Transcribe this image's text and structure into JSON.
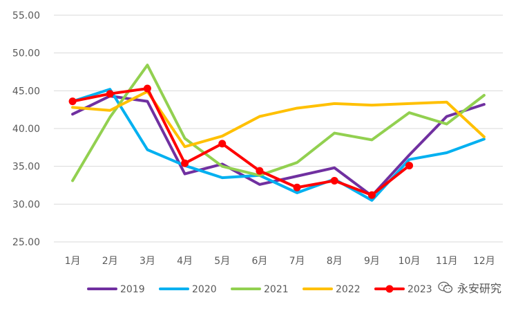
{
  "chart_data": {
    "type": "line",
    "title": "",
    "xlabel": "",
    "ylabel": "",
    "categories": [
      "1月",
      "2月",
      "3月",
      "4月",
      "5月",
      "6月",
      "7月",
      "8月",
      "9月",
      "10月",
      "11月",
      "12月"
    ],
    "ylim": [
      25,
      55
    ],
    "yticks": [
      "25.00",
      "30.00",
      "35.00",
      "40.00",
      "45.00",
      "50.00",
      "55.00"
    ],
    "grid": true,
    "legend_position": "bottom",
    "series": [
      {
        "name": "2019",
        "color": "#7030A0",
        "markers": false,
        "values": [
          41.9,
          44.3,
          43.6,
          34.0,
          35.3,
          32.6,
          33.7,
          34.8,
          31.1,
          36.5,
          41.6,
          43.2
        ]
      },
      {
        "name": "2020",
        "color": "#00B0F0",
        "markers": false,
        "values": [
          43.6,
          45.2,
          37.2,
          35.1,
          33.5,
          33.8,
          31.5,
          33.3,
          30.5,
          35.9,
          36.8,
          38.6
        ]
      },
      {
        "name": "2021",
        "color": "#92D050",
        "markers": false,
        "values": [
          33.1,
          41.5,
          48.4,
          38.7,
          35.0,
          33.8,
          35.5,
          39.4,
          38.5,
          42.1,
          40.6,
          44.4
        ]
      },
      {
        "name": "2022",
        "color": "#FFC000",
        "markers": false,
        "values": [
          42.8,
          42.4,
          44.9,
          37.6,
          39.0,
          41.6,
          42.7,
          43.3,
          43.1,
          43.3,
          43.5,
          38.9
        ]
      },
      {
        "name": "2023",
        "color": "#FF0000",
        "markers": true,
        "values": [
          43.6,
          44.6,
          45.3,
          35.4,
          38.0,
          34.4,
          32.2,
          33.1,
          31.2,
          35.1,
          null,
          null
        ]
      }
    ]
  },
  "watermark": {
    "icon": "wechat-icon",
    "text": "永安研究"
  }
}
